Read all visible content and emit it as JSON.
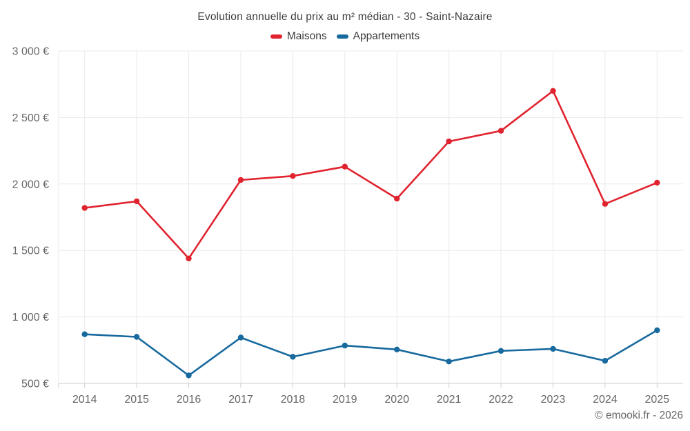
{
  "title": "Evolution annuelle du prix au m² médian - 30 - Saint-Nazaire",
  "legend": {
    "items": [
      {
        "label": "Maisons",
        "color": "#e0232e"
      },
      {
        "label": "Appartements",
        "color": "#17699e"
      }
    ]
  },
  "footer": {
    "credit": "© emooki.fr - 2026"
  },
  "chart_data": {
    "type": "line",
    "title": "Evolution annuelle du prix au m² médian - 30 - Saint-Nazaire",
    "categories": [
      "2014",
      "2015",
      "2016",
      "2017",
      "2018",
      "2019",
      "2020",
      "2021",
      "2022",
      "2023",
      "2024",
      "2025"
    ],
    "series": [
      {
        "name": "Maisons",
        "color": "#e0232e",
        "values": [
          1820,
          1870,
          1440,
          2030,
          2060,
          2130,
          1890,
          2320,
          2400,
          2700,
          1850,
          2010
        ]
      },
      {
        "name": "Appartements",
        "color": "#17699e",
        "values": [
          870,
          850,
          560,
          845,
          700,
          785,
          755,
          665,
          745,
          760,
          670,
          900
        ]
      }
    ],
    "xlabel": "",
    "ylabel": "",
    "ylim": [
      500,
      3000
    ],
    "ytick_step": 500,
    "ytick_labels": [
      "500 €",
      "1 000 €",
      "1 500 €",
      "2 000 €",
      "2 500 €",
      "3 000 €"
    ],
    "grid": true,
    "legend_position": "top"
  },
  "style": {
    "grid_color": "#eaeaea",
    "axis_color": "#cccccc",
    "tick_color": "#cccccc",
    "tick_label_color": "#666666",
    "title_color": "#3d3d3d",
    "background": "#ffffff"
  }
}
